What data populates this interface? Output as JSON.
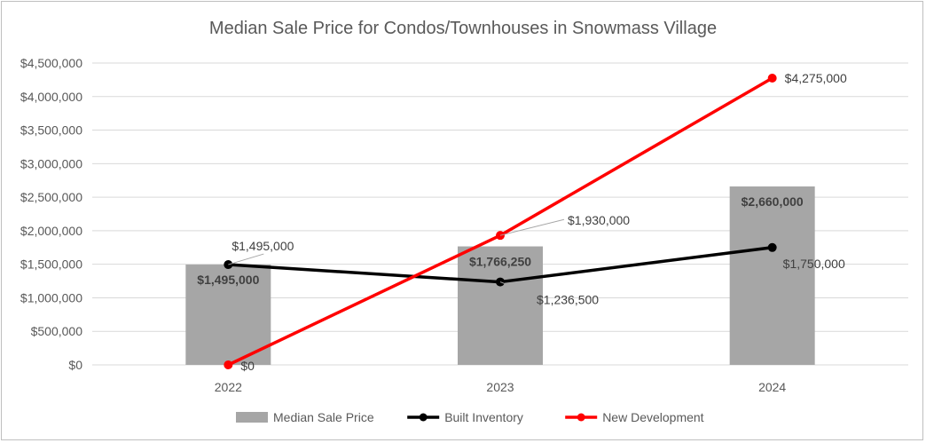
{
  "chart_data": {
    "type": "bar",
    "title": "Median Sale Price for Condos/Townhouses in Snowmass Village",
    "categories": [
      "2022",
      "2023",
      "2024"
    ],
    "ylim": [
      0,
      4500000
    ],
    "ytick_step": 500000,
    "ytick_labels": [
      "$0",
      "$500,000",
      "$1,000,000",
      "$1,500,000",
      "$2,000,000",
      "$2,500,000",
      "$3,000,000",
      "$3,500,000",
      "$4,000,000",
      "$4,500,000"
    ],
    "grid": true,
    "legend_position": "bottom",
    "series": [
      {
        "name": "Median Sale Price",
        "type": "bar",
        "color": "#a6a6a6",
        "values": [
          1495000,
          1766250,
          2660000
        ],
        "labels": [
          "$1,495,000",
          "$1,766,250",
          "$2,660,000"
        ]
      },
      {
        "name": "Built Inventory",
        "type": "line",
        "color": "#000000",
        "values": [
          1495000,
          1236500,
          1750000
        ],
        "labels": [
          "$1,495,000",
          "$1,236,500",
          "$1,750,000"
        ]
      },
      {
        "name": "New Development",
        "type": "line",
        "color": "#ff0000",
        "values": [
          0,
          1930000,
          4275000
        ],
        "labels": [
          "$0",
          "$1,930,000",
          "$4,275,000"
        ]
      }
    ]
  }
}
